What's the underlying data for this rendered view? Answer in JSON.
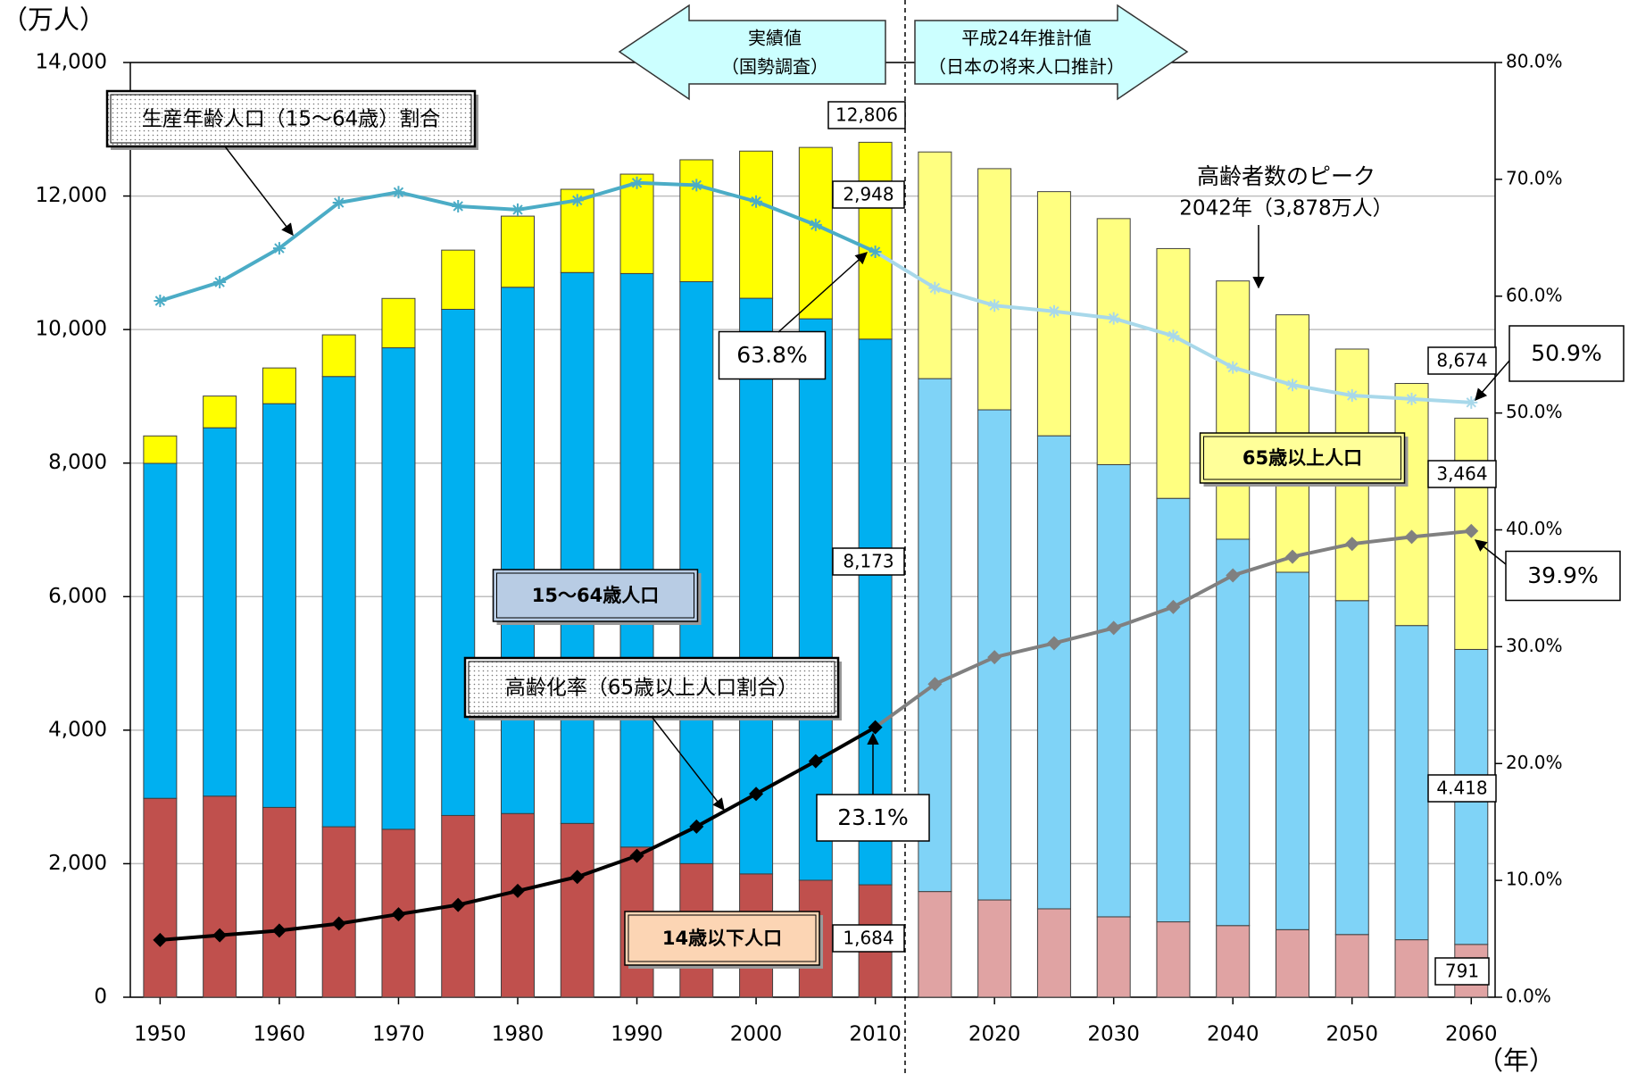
{
  "chart_data": {
    "type": "bar",
    "y_label": "（万人）",
    "x_label": "（年）",
    "x": [
      1950,
      1955,
      1960,
      1965,
      1970,
      1975,
      1980,
      1985,
      1990,
      1995,
      2000,
      2005,
      2010,
      2015,
      2020,
      2025,
      2030,
      2035,
      2040,
      2045,
      2050,
      2055,
      2060
    ],
    "xlim": [
      1947.5,
      2062
    ],
    "xticks": [
      1950,
      1960,
      1970,
      1980,
      1990,
      2000,
      2010,
      2020,
      2030,
      2040,
      2050,
      2060
    ],
    "ylim": [
      0,
      14000
    ],
    "yticks": [
      0,
      {
        "value": 2000,
        "label": "2,000"
      },
      {
        "value": 4000,
        "label": "4,000"
      },
      {
        "value": 6000,
        "label": "6,000"
      },
      {
        "value": 8000,
        "label": "8,000"
      },
      {
        "value": 10000,
        "label": "10,000"
      },
      {
        "value": 12000,
        "label": "12,000"
      },
      {
        "value": 14000,
        "label": "14,000"
      }
    ],
    "y2lim": [
      0,
      80
    ],
    "y2ticks": [
      {
        "value": 0,
        "label": "0.0%"
      },
      {
        "value": 10,
        "label": "10.0%"
      },
      {
        "value": 20,
        "label": "20.0%"
      },
      {
        "value": 30,
        "label": "30.0%"
      },
      {
        "value": 40,
        "label": "40.0%"
      },
      {
        "value": 50,
        "label": "50.0%"
      },
      {
        "value": 60,
        "label": "60.0%"
      },
      {
        "value": 70,
        "label": "70.0%"
      },
      {
        "value": 80,
        "label": "80.0%"
      }
    ],
    "grid": true,
    "series": [
      {
        "name": "14歳以下人口",
        "type": "bar",
        "color": "#c0504d",
        "colors": [
          "#c0504d",
          "#c0504d",
          "#c0504d",
          "#c0504d",
          "#c0504d",
          "#c0504d",
          "#c0504d",
          "#c0504d",
          "#c0504d",
          "#c0504d",
          "#c0504d",
          "#c0504d",
          "#c0504d",
          "#e0a3a3",
          "#e0a3a3",
          "#e0a3a3",
          "#e0a3a3",
          "#e0a3a3",
          "#e0a3a3",
          "#e0a3a3",
          "#e0a3a3",
          "#e0a3a3",
          "#e0a3a3"
        ],
        "values": [
          2979,
          3012,
          2843,
          2553,
          2515,
          2722,
          2751,
          2603,
          2249,
          2001,
          1847,
          1752,
          1684,
          1583,
          1457,
          1324,
          1204,
          1129,
          1073,
          1012,
          939,
          861,
          791
        ],
        "value_labels": [
          null,
          null,
          null,
          null,
          null,
          null,
          null,
          null,
          null,
          null,
          null,
          null,
          "1,684",
          null,
          null,
          null,
          null,
          null,
          null,
          null,
          null,
          null,
          "791"
        ]
      },
      {
        "name": "15～64歳人口",
        "type": "bar",
        "color": "#00b0f0",
        "colors": [
          "#00b0f0",
          "#00b0f0",
          "#00b0f0",
          "#00b0f0",
          "#00b0f0",
          "#00b0f0",
          "#00b0f0",
          "#00b0f0",
          "#00b0f0",
          "#00b0f0",
          "#00b0f0",
          "#00b0f0",
          "#00b0f0",
          "#7fd3f7",
          "#7fd3f7",
          "#7fd3f7",
          "#7fd3f7",
          "#7fd3f7",
          "#7fd3f7",
          "#7fd3f7",
          "#7fd3f7",
          "#7fd3f7",
          "#7fd3f7"
        ],
        "values": [
          5017,
          5517,
          6047,
          6744,
          7212,
          7581,
          7883,
          8251,
          8590,
          8716,
          8622,
          8409,
          8173,
          7682,
          7341,
          7085,
          6773,
          6343,
          5787,
          5353,
          5001,
          4706,
          4418
        ],
        "value_labels": [
          null,
          null,
          null,
          null,
          null,
          null,
          null,
          null,
          null,
          null,
          null,
          null,
          "8,173",
          null,
          null,
          null,
          null,
          null,
          null,
          null,
          null,
          null,
          "4.418"
        ]
      },
      {
        "name": "65歳以上人口",
        "type": "bar",
        "color": "#ffff00",
        "colors": [
          "#ffff00",
          "#ffff00",
          "#ffff00",
          "#ffff00",
          "#ffff00",
          "#ffff00",
          "#ffff00",
          "#ffff00",
          "#ffff00",
          "#ffff00",
          "#ffff00",
          "#ffff00",
          "#ffff00",
          "#ffff80",
          "#ffff80",
          "#ffff80",
          "#ffff80",
          "#ffff80",
          "#ffff80",
          "#ffff80",
          "#ffff80",
          "#ffff80",
          "#ffff80"
        ],
        "values": [
          411,
          475,
          535,
          624,
          739,
          887,
          1065,
          1247,
          1489,
          1826,
          2204,
          2567,
          2948,
          3395,
          3612,
          3657,
          3685,
          3741,
          3868,
          3856,
          3768,
          3626,
          3464
        ],
        "value_labels": [
          null,
          null,
          null,
          null,
          null,
          null,
          null,
          null,
          null,
          null,
          null,
          null,
          "2,948",
          null,
          null,
          null,
          null,
          null,
          null,
          null,
          null,
          null,
          "3,464"
        ]
      },
      {
        "name": "生産年齢人口（15～64歳）割合",
        "type": "line",
        "axis": "y2",
        "marker": "star",
        "color": "#4bacc6",
        "colors": [
          "#4bacc6",
          "#4bacc6",
          "#4bacc6",
          "#4bacc6",
          "#4bacc6",
          "#4bacc6",
          "#4bacc6",
          "#4bacc6",
          "#4bacc6",
          "#4bacc6",
          "#4bacc6",
          "#4bacc6",
          "#4bacc6",
          "#a8d8ea",
          "#a8d8ea",
          "#a8d8ea",
          "#a8d8ea",
          "#a8d8ea",
          "#a8d8ea",
          "#a8d8ea",
          "#a8d8ea",
          "#a8d8ea",
          "#a8d8ea"
        ],
        "values": [
          59.6,
          61.2,
          64.1,
          68.0,
          68.9,
          67.7,
          67.4,
          68.2,
          69.7,
          69.5,
          68.1,
          66.1,
          63.8,
          60.7,
          59.2,
          58.7,
          58.1,
          56.6,
          53.9,
          52.4,
          51.5,
          51.2,
          50.9
        ],
        "value_labels": [
          null,
          null,
          null,
          null,
          null,
          null,
          null,
          null,
          null,
          null,
          null,
          null,
          "63.8%",
          null,
          null,
          null,
          null,
          null,
          null,
          null,
          null,
          null,
          "50.9%"
        ]
      },
      {
        "name": "高齢化率（65歳以上人口割合）",
        "type": "line",
        "axis": "y2",
        "marker": "diamond",
        "color": "#000000",
        "colors": [
          "#000000",
          "#000000",
          "#000000",
          "#000000",
          "#000000",
          "#000000",
          "#000000",
          "#000000",
          "#000000",
          "#000000",
          "#000000",
          "#000000",
          "#000000",
          "#808080",
          "#808080",
          "#808080",
          "#808080",
          "#808080",
          "#808080",
          "#808080",
          "#808080",
          "#808080",
          "#808080"
        ],
        "values": [
          4.9,
          5.3,
          5.7,
          6.3,
          7.1,
          7.9,
          9.1,
          10.3,
          12.1,
          14.6,
          17.4,
          20.2,
          23.1,
          26.8,
          29.1,
          30.3,
          31.6,
          33.4,
          36.1,
          37.7,
          38.8,
          39.4,
          39.9
        ],
        "value_labels": [
          null,
          null,
          null,
          null,
          null,
          null,
          null,
          null,
          null,
          null,
          null,
          null,
          "23.1%",
          null,
          null,
          null,
          null,
          null,
          null,
          null,
          null,
          null,
          "39.9%"
        ]
      }
    ],
    "total_labels": [
      null,
      null,
      null,
      null,
      null,
      null,
      null,
      null,
      null,
      null,
      null,
      null,
      "12,806",
      null,
      null,
      null,
      null,
      null,
      null,
      null,
      null,
      null,
      "8,674"
    ],
    "annotations": [
      "実績値",
      "（国勢調査）",
      "平成24年推計値",
      "（日本の将来人口推計）",
      "高齢者数のピーク",
      "2042年（3,878万人）"
    ]
  }
}
